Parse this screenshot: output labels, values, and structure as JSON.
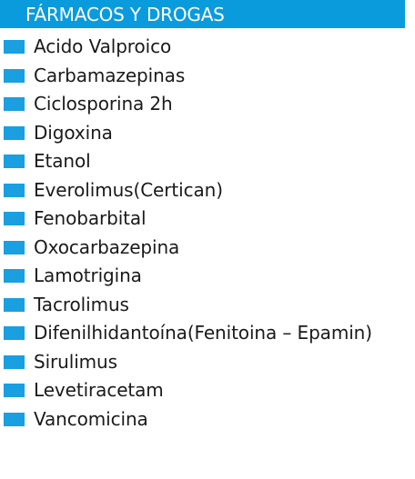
{
  "header": {
    "title": "FÁRMACOS Y DROGAS",
    "background_color": "#0a9bdd",
    "text_color": "#ffffff"
  },
  "bullet_color": "#1a9fe0",
  "items": [
    {
      "label": "Acido Valproico",
      "icon": "blue-square-bullet"
    },
    {
      "label": "Carbamazepinas",
      "icon": "blue-square-bullet"
    },
    {
      "label": "Ciclosporina 2h",
      "icon": "blue-square-bullet"
    },
    {
      "label": "Digoxina",
      "icon": "blue-square-bullet"
    },
    {
      "label": "Etanol",
      "icon": "blue-square-bullet"
    },
    {
      "label": "Everolimus(Certican)",
      "icon": "blue-square-bullet"
    },
    {
      "label": "Fenobarbital",
      "icon": "blue-square-bullet"
    },
    {
      "label": "Oxocarbazepina",
      "icon": "blue-square-bullet"
    },
    {
      "label": "Lamotrigina",
      "icon": "blue-square-bullet"
    },
    {
      "label": "Tacrolimus",
      "icon": "blue-square-bullet"
    },
    {
      "label": "Difenilhidantoína(Fenitoina – Epamin)",
      "icon": "blue-square-bullet"
    },
    {
      "label": "Sirulimus",
      "icon": "blue-square-bullet"
    },
    {
      "label": "Levetiracetam",
      "icon": "blue-square-bullet"
    },
    {
      "label": "Vancomicina",
      "icon": "blue-square-bullet"
    }
  ]
}
